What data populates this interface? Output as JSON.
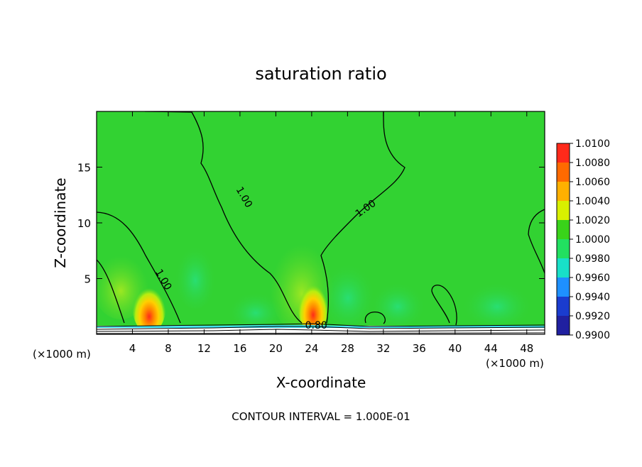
{
  "chart_data": {
    "type": "heatmap",
    "title": "saturation ratio",
    "xlabel": "X-coordinate",
    "ylabel": "Z-coordinate",
    "x_unit_left": "(×1000 m)",
    "x_unit_right": "(×1000 m)",
    "xlim": [
      0,
      50
    ],
    "ylim": [
      0,
      20
    ],
    "x_ticks": [
      4,
      8,
      12,
      16,
      20,
      24,
      28,
      32,
      36,
      40,
      44,
      48
    ],
    "y_ticks": [
      5,
      10,
      15
    ],
    "footer": "CONTOUR INTERVAL = 1.000E-01",
    "colorbar": {
      "levels": [
        "1.0100",
        "1.0080",
        "1.0060",
        "1.0040",
        "1.0020",
        "1.0000",
        "0.9980",
        "0.9960",
        "0.9940",
        "0.9920",
        "0.9900"
      ],
      "colors": [
        "#f08080",
        "#ff2a1a",
        "#ff6a00",
        "#ffb000",
        "#d8f000",
        "#39d31a",
        "#22e060",
        "#18e0c8",
        "#1e90ff",
        "#1a3ccf",
        "#2020a0",
        "#7a28b0"
      ]
    },
    "background_color": "#32d232",
    "contour_labels": [
      {
        "text": "1.00",
        "x": 16.5,
        "z": 12.0
      },
      {
        "text": "1.00",
        "x": 7.5,
        "z": 4.6
      },
      {
        "text": "1.00",
        "x": 30.0,
        "z": 11.0
      },
      {
        "text": "0.80",
        "x": 24.5,
        "z": 0.5
      }
    ],
    "features": [
      {
        "name": "saturation maximum",
        "x": 6.0,
        "z": 2.0,
        "value": 1.007
      },
      {
        "name": "saturation maximum",
        "x": 24.2,
        "z": 2.0,
        "value": 1.008
      }
    ]
  }
}
